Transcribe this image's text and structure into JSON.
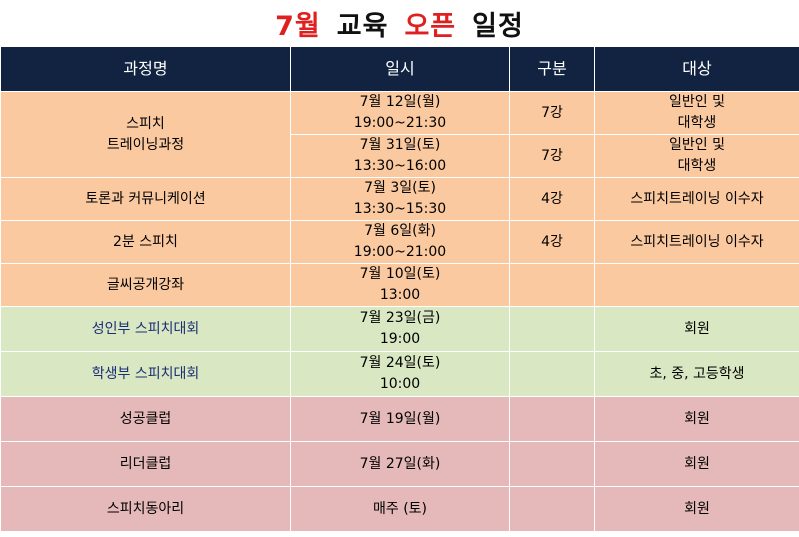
{
  "title": {
    "part1": "7월",
    "part2": "교육",
    "part3": "오픈",
    "part4": "일정"
  },
  "headers": [
    "과정명",
    "일시",
    "구분",
    "대상"
  ],
  "rows": {
    "r0": {
      "course": [
        "스피치",
        "트레이닝과정"
      ],
      "date": [
        "7월 12일(월)",
        "19:00~21:30"
      ],
      "type": "7강",
      "target": [
        "일반인 및",
        "대학생"
      ]
    },
    "r1": {
      "date": [
        "7월 31일(토)",
        "13:30~16:00"
      ],
      "type": "7강",
      "target": [
        "일반인 및",
        "대학생"
      ]
    },
    "r2": {
      "course": "토론과 커뮤니케이션",
      "date": [
        "7월 3일(토)",
        "13:30~15:30"
      ],
      "type": "4강",
      "target": "스피치트레이닝 이수자"
    },
    "r3": {
      "course": "2분 스피치",
      "date": [
        "7월 6일(화)",
        "19:00~21:00"
      ],
      "type": "4강",
      "target": "스피치트레이닝 이수자"
    },
    "r4": {
      "course": "글씨공개강좌",
      "date": [
        "7월 10일(토)",
        "13:00"
      ],
      "type": "",
      "target": ""
    },
    "r5": {
      "course": "성인부 스피치대회",
      "date": [
        "7월 23일(금)",
        "19:00"
      ],
      "type": "",
      "target": "회원"
    },
    "r6": {
      "course": "학생부 스피치대회",
      "date": [
        "7월 24일(토)",
        "10:00"
      ],
      "type": "",
      "target": "초, 중, 고등학생"
    },
    "r7": {
      "course": "성공클럽",
      "date": "7월 19일(월)",
      "type": "",
      "target": "회원"
    },
    "r8": {
      "course": "리더클럽",
      "date": "7월 27일(화)",
      "type": "",
      "target": "회원"
    },
    "r9": {
      "course": "스피치동아리",
      "date": "매주 (토)",
      "type": "",
      "target": "회원"
    }
  },
  "colors": {
    "title_accent": "#e02020",
    "header_bg": "#112341",
    "group_lecture": "#fac9a0",
    "group_contest": "#d9e7c3",
    "group_club": "#e5b9b9",
    "contest_text": "#1b2f75"
  }
}
